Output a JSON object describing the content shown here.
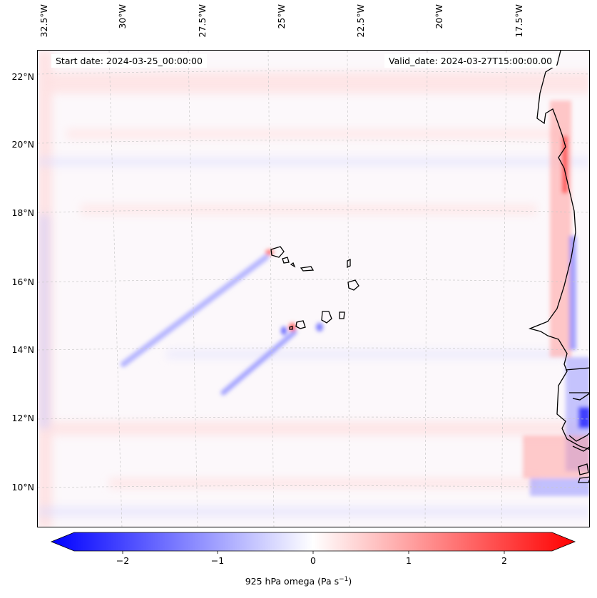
{
  "map": {
    "start_date": "Start date: 2024-03-25_00:00:00",
    "valid_date": "Valid_date: 2024-03-27T15:00:00.00",
    "lon_labels": [
      "32.5°W",
      "30°W",
      "27.5°W",
      "25°W",
      "22.5°W",
      "20°W",
      "17.5°W"
    ],
    "lat_labels": [
      "22°N",
      "20°N",
      "18°N",
      "16°N",
      "14°N",
      "12°N",
      "10°N"
    ],
    "colors": {
      "positive": "#ff0000",
      "negative": "#0000ff",
      "neutral": "#ffffff",
      "coastline": "#000000"
    }
  },
  "colorbar": {
    "ticks": [
      "−2",
      "−1",
      "0",
      "1",
      "2"
    ],
    "label": "925 hPa omega (Pa s",
    "label_sup": "−1",
    "label_end": ")",
    "range": [
      -2.7,
      2.7
    ]
  }
}
